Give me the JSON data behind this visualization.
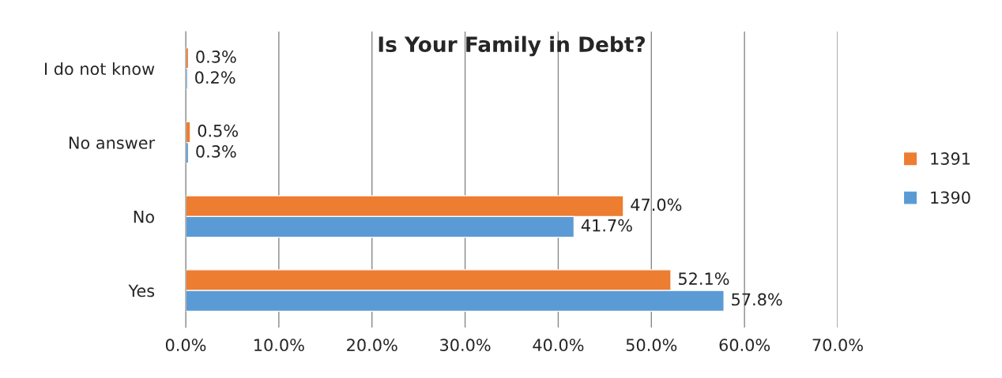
{
  "chart_data": {
    "type": "bar",
    "orientation": "horizontal",
    "title": "Is Your Family in Debt?",
    "categories": [
      "I do not know",
      "No answer",
      "No",
      "Yes"
    ],
    "series": [
      {
        "name": "1391",
        "color": "#ed7d31",
        "values": [
          0.3,
          0.5,
          47.0,
          52.1
        ],
        "value_labels": [
          "0.3%",
          "0.5%",
          "47.0%",
          "52.1%"
        ]
      },
      {
        "name": "1390",
        "color": "#5b9bd5",
        "values": [
          0.2,
          0.3,
          41.7,
          57.8
        ],
        "value_labels": [
          "0.2%",
          "0.3%",
          "41.7%",
          "57.8%"
        ]
      }
    ],
    "xlim": [
      0,
      70
    ],
    "xticks": [
      {
        "value": 0,
        "label": "0.0%"
      },
      {
        "value": 10,
        "label": "10.0%"
      },
      {
        "value": 20,
        "label": "20.0%"
      },
      {
        "value": 30,
        "label": "30.0%"
      },
      {
        "value": 40,
        "label": "40.0%"
      },
      {
        "value": 50,
        "label": "50.0%"
      },
      {
        "value": 60,
        "label": "60.0%"
      },
      {
        "value": 70,
        "label": "70.0%"
      }
    ],
    "grid": "x",
    "legend": "right"
  }
}
